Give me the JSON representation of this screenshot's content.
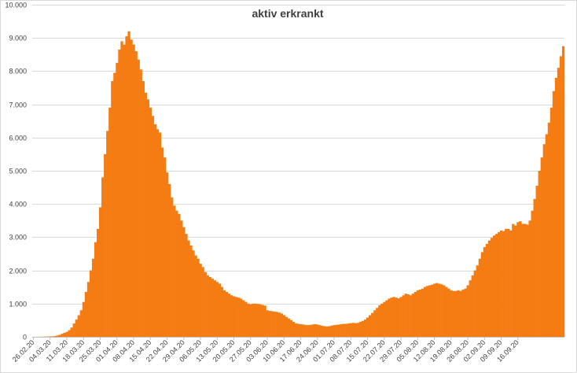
{
  "chart_data": {
    "type": "bar",
    "title": "aktiv erkrankt",
    "xlabel": "",
    "ylabel": "",
    "ylim": [
      0,
      10000
    ],
    "grid": true,
    "legend": "none",
    "color": "#F47C13",
    "y_ticks": [
      "0",
      "1.000",
      "2.000",
      "3.000",
      "4.000",
      "5.000",
      "6.000",
      "7.000",
      "8.000",
      "9.000",
      "10.000"
    ],
    "x_tick_labels": [
      "26.02.20",
      "04.03.20",
      "11.03.20",
      "18.03.20",
      "25.03.20",
      "01.04.20",
      "08.04.20",
      "15.04.20",
      "22.04.20",
      "29.04.20",
      "06.05.20",
      "13.05.20",
      "20.05.20",
      "27.05.20",
      "03.06.20",
      "10.06.20",
      "17.06.20",
      "24.06.20",
      "01.07.20",
      "08.07.20",
      "15.07.20",
      "22.07.20",
      "29.07.20",
      "05.08.20",
      "12.08.20",
      "19.08.20",
      "26.08.20",
      "02.09.20",
      "09.09.20",
      "16.09.20"
    ],
    "values": [
      1,
      2,
      2,
      3,
      5,
      8,
      10,
      14,
      15,
      20,
      40,
      60,
      90,
      120,
      150,
      200,
      280,
      400,
      520,
      650,
      800,
      1050,
      1350,
      1650,
      2000,
      2350,
      2850,
      3250,
      3900,
      4800,
      5500,
      6200,
      6900,
      7700,
      7950,
      8250,
      8650,
      8900,
      8800,
      9050,
      9200,
      8950,
      8800,
      8600,
      8350,
      8050,
      7700,
      7350,
      7150,
      6900,
      6650,
      6400,
      6250,
      6150,
      5700,
      5400,
      4950,
      4600,
      4200,
      3950,
      3800,
      3700,
      3500,
      3300,
      3100,
      2900,
      2750,
      2600,
      2450,
      2350,
      2200,
      2100,
      1950,
      1850,
      1800,
      1750,
      1700,
      1650,
      1600,
      1500,
      1400,
      1350,
      1300,
      1250,
      1220,
      1200,
      1180,
      1150,
      1100,
      1050,
      1000,
      980,
      1000,
      1000,
      990,
      980,
      960,
      940,
      800,
      780,
      770,
      760,
      750,
      730,
      700,
      650,
      600,
      550,
      500,
      450,
      400,
      390,
      380,
      370,
      360,
      350,
      360,
      370,
      380,
      370,
      350,
      330,
      320,
      310,
      320,
      340,
      350,
      360,
      370,
      380,
      390,
      390,
      400,
      410,
      420,
      410,
      420,
      450,
      480,
      520,
      580,
      650,
      720,
      800,
      870,
      950,
      1000,
      1050,
      1100,
      1150,
      1180,
      1200,
      1180,
      1160,
      1200,
      1250,
      1300,
      1280,
      1250,
      1300,
      1350,
      1400,
      1420,
      1450,
      1500,
      1530,
      1550,
      1570,
      1600,
      1620,
      1600,
      1580,
      1550,
      1500,
      1450,
      1400,
      1380,
      1380,
      1400,
      1380,
      1420,
      1450,
      1550,
      1700,
      1850,
      2000,
      2150,
      2350,
      2550,
      2700,
      2800,
      2900,
      2980,
      3050,
      3100,
      3150,
      3200,
      3180,
      3250,
      3250,
      3200,
      3400,
      3350,
      3450,
      3480,
      3400,
      3400,
      3380,
      3500,
      3800,
      4150,
      4550,
      5000,
      5400,
      5800,
      6100,
      6450,
      6900,
      7400,
      7800,
      8100,
      8450,
      8750
    ]
  }
}
